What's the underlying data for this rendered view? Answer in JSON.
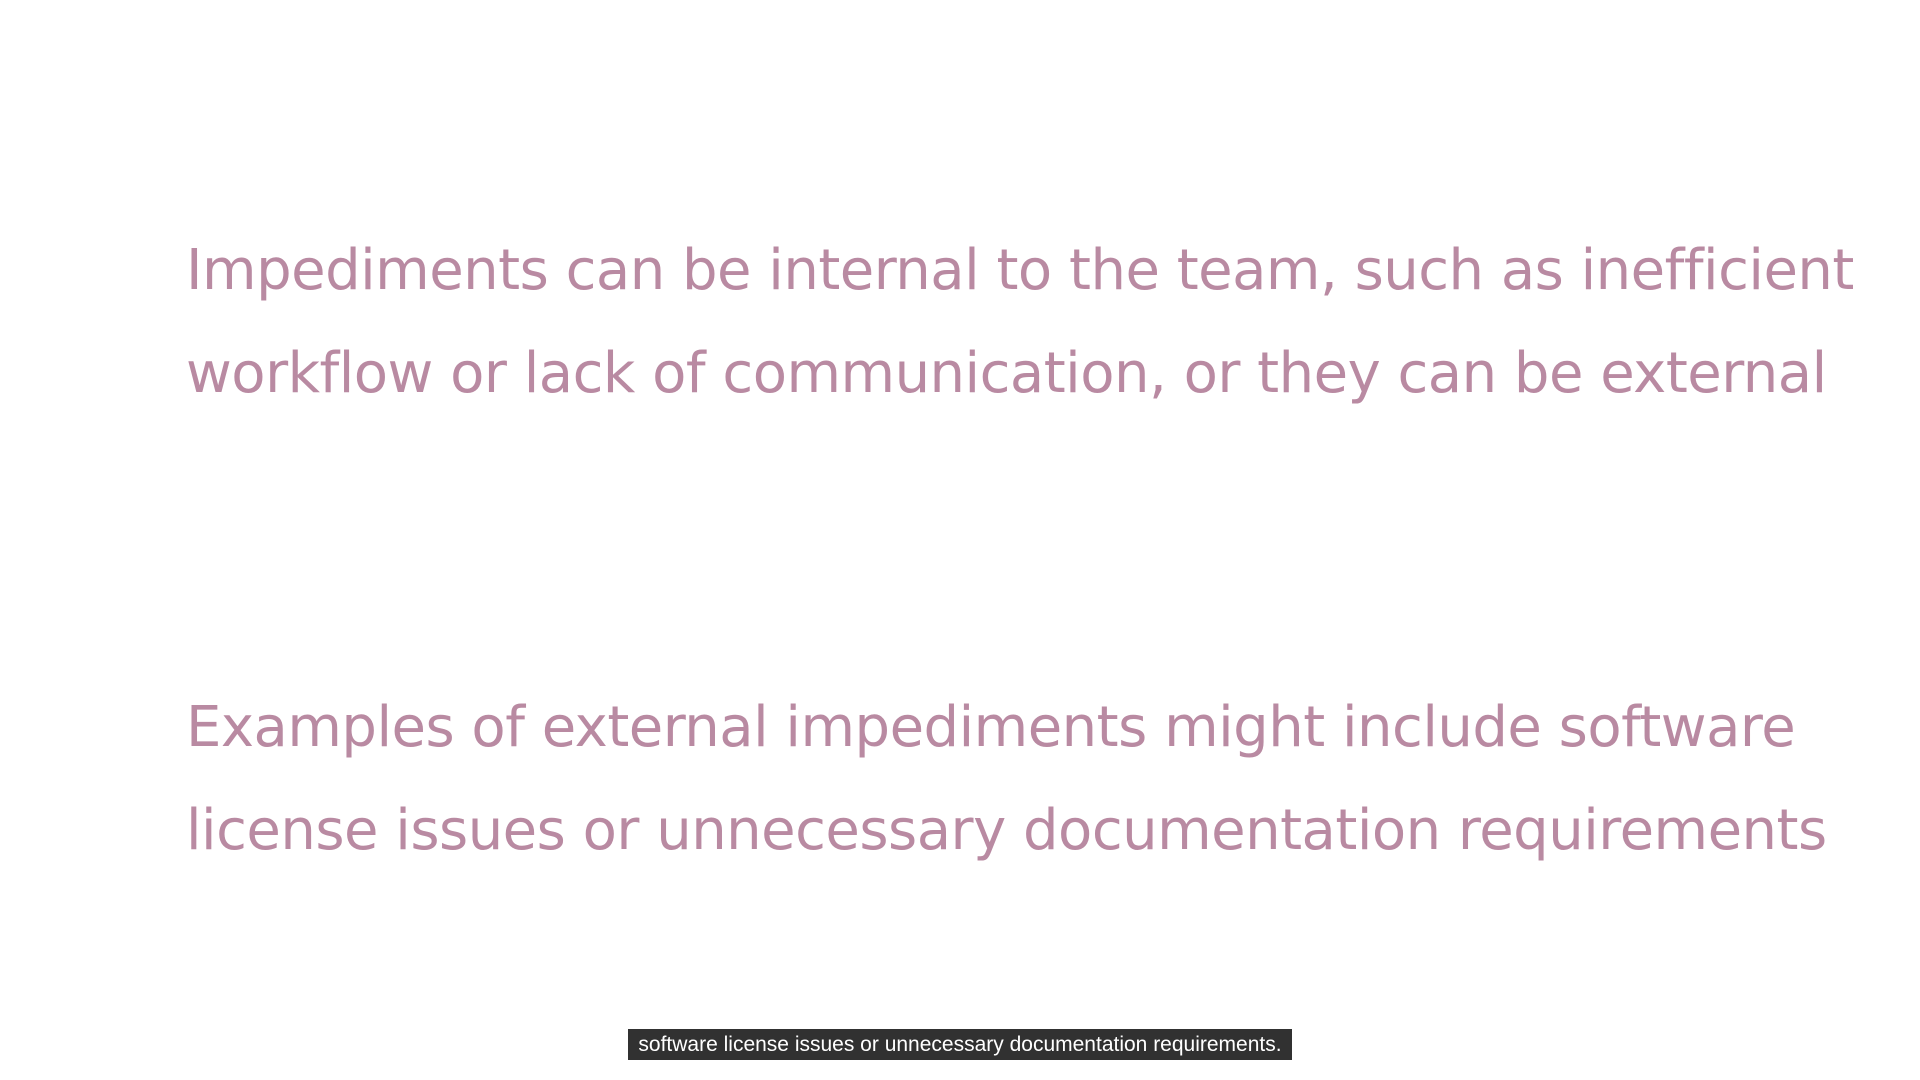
{
  "slide": {
    "paragraph_1": {
      "lines": [
        "Impediments can be internal to the team, such as inefficient",
        "workflow or lack of communication, or they can be external"
      ]
    },
    "paragraph_2": {
      "lines": [
        "Examples of external impediments might include software",
        "license issues or unnecessary documentation requirements"
      ]
    },
    "text_color": "#b98aa2"
  },
  "subtitle": {
    "text": "software license issues or unnecessary documentation requirements."
  }
}
